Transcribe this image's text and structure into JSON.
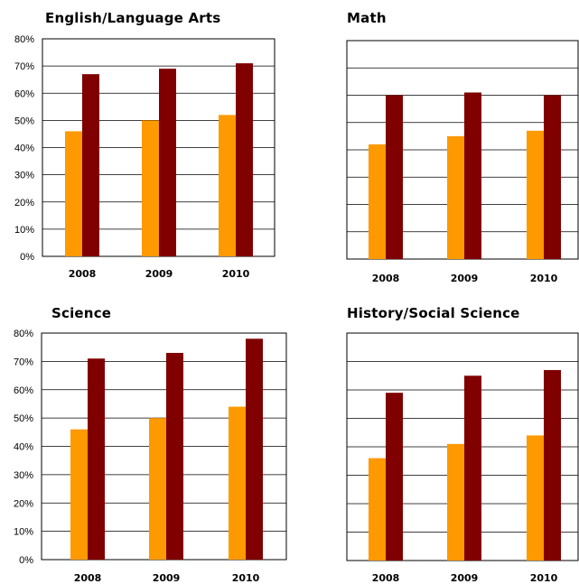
{
  "colors": {
    "series_a": "#FF9900",
    "series_b": "#800000",
    "grid": "#000000",
    "bg": "#ffffff"
  },
  "chart_data": [
    {
      "type": "bar",
      "title": "English/Language Arts",
      "categories": [
        "2008",
        "2009",
        "2010"
      ],
      "series": [
        {
          "values": [
            46,
            50,
            52
          ]
        },
        {
          "values": [
            67,
            69,
            71
          ]
        }
      ],
      "ylim": [
        0,
        80
      ],
      "yticks": [
        "0%",
        "10%",
        "20%",
        "30%",
        "40%",
        "50%",
        "60%",
        "70%",
        "80%"
      ],
      "grid": true
    },
    {
      "type": "bar",
      "title": "Math",
      "categories": [
        "2008",
        "2009",
        "2010"
      ],
      "series": [
        {
          "values": [
            42,
            45,
            47
          ]
        },
        {
          "values": [
            60,
            61,
            60
          ]
        }
      ],
      "ylim": [
        0,
        80
      ],
      "yticks": [],
      "grid": true
    },
    {
      "type": "bar",
      "title": "Science",
      "categories": [
        "2008",
        "2009",
        "2010"
      ],
      "series": [
        {
          "values": [
            46,
            50,
            54
          ]
        },
        {
          "values": [
            71,
            73,
            78
          ]
        }
      ],
      "ylim": [
        0,
        80
      ],
      "yticks": [
        "0%",
        "10%",
        "20%",
        "30%",
        "40%",
        "50%",
        "60%",
        "70%",
        "80%"
      ],
      "grid": true
    },
    {
      "type": "bar",
      "title": "History/Social Science",
      "categories": [
        "2008",
        "2009",
        "2010"
      ],
      "series": [
        {
          "values": [
            36,
            41,
            44
          ]
        },
        {
          "values": [
            59,
            65,
            67
          ]
        }
      ],
      "ylim": [
        0,
        80
      ],
      "yticks": [],
      "grid": true
    }
  ]
}
